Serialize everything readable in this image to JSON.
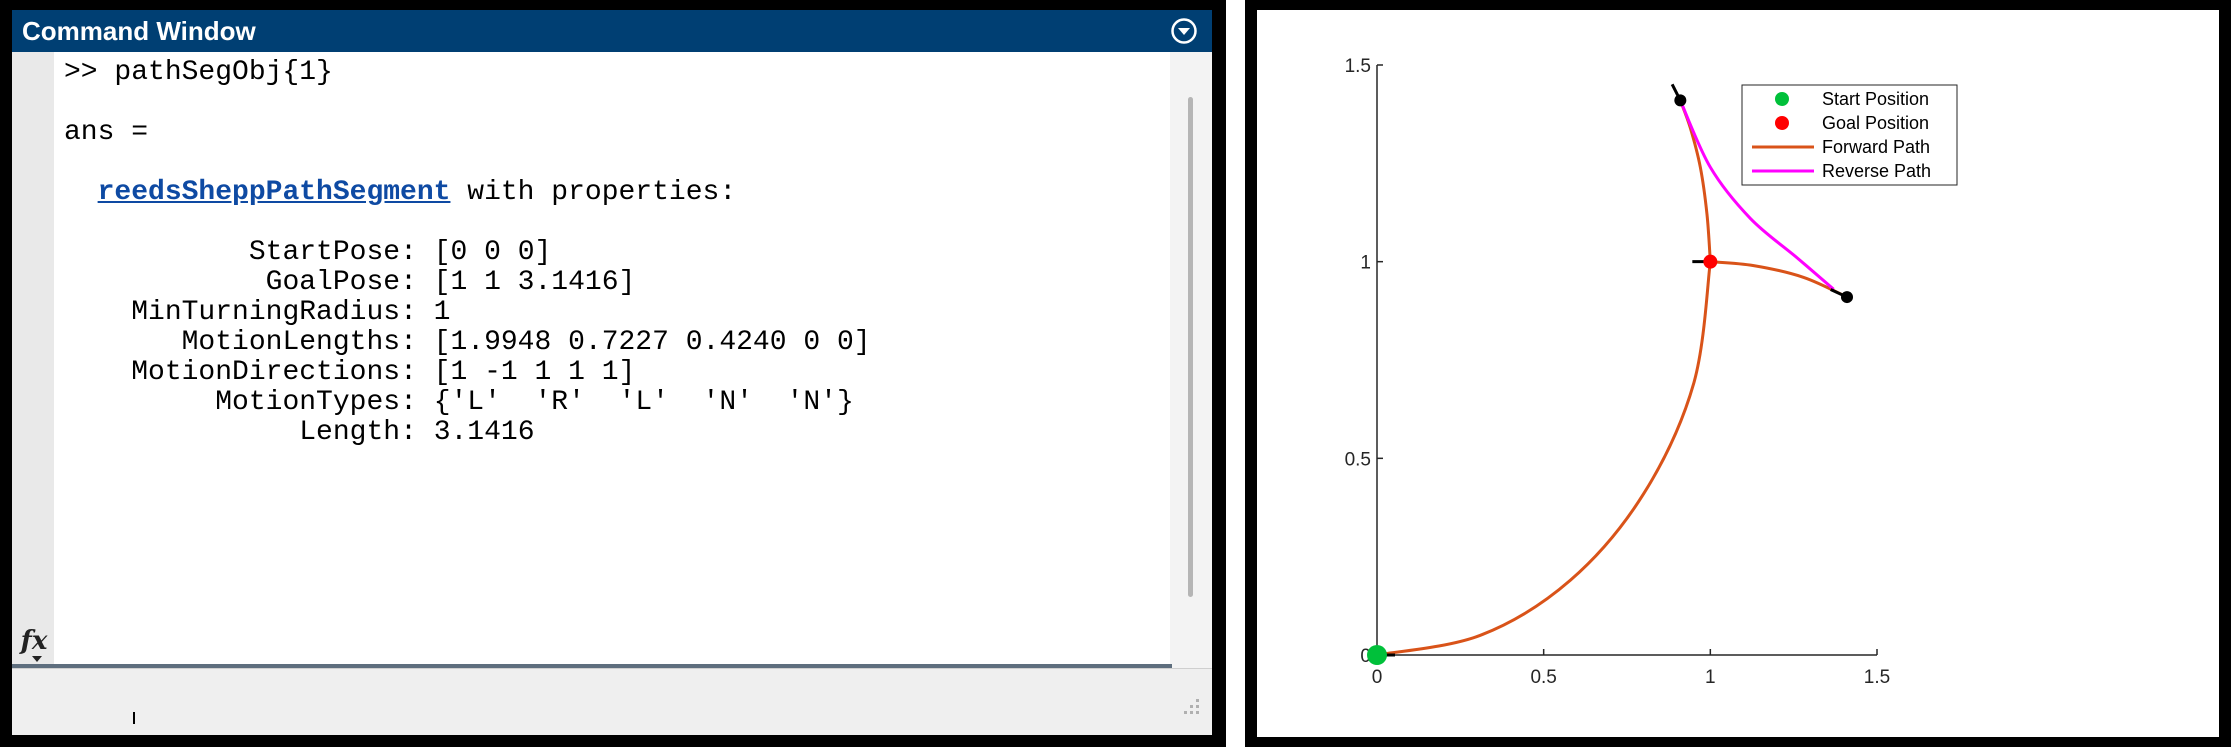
{
  "command_window": {
    "title": "Command Window",
    "lines": [
      ">> pathSegObj{1}",
      "",
      "ans =",
      "",
      "  reedsSheppPathSegment with properties:",
      "",
      "           StartPose: [0 0 0]",
      "            GoalPose: [1 1 3.1416]",
      "    MinTurningRadius: 1",
      "       MotionLengths: [1.9948 0.7227 0.4240 0 0]",
      "    MotionDirections: [1 -1 1 1 1]",
      "         MotionTypes: {'L'  'R'  'L'  'N'  'N'}",
      "              Length: 3.1416"
    ],
    "prompt_line": ">> pathSegObj{1}",
    "ans_line": "ans =",
    "class_link": "reedsSheppPathSegment",
    "class_suffix": " with properties:",
    "props": [
      {
        "name": "StartPose",
        "value": "[0 0 0]"
      },
      {
        "name": "GoalPose",
        "value": "[1 1 3.1416]"
      },
      {
        "name": "MinTurningRadius",
        "value": "1"
      },
      {
        "name": "MotionLengths",
        "value": "[1.9948 0.7227 0.4240 0 0]"
      },
      {
        "name": "MotionDirections",
        "value": "[1 -1 1 1 1]"
      },
      {
        "name": "MotionTypes",
        "value": "{'L'  'R'  'L'  'N'  'N'}"
      },
      {
        "name": "Length",
        "value": "3.1416"
      }
    ],
    "fx_label": "fx",
    "colors": {
      "titlebar": "#003f73",
      "link": "#0e4aa3"
    }
  },
  "chart_data": {
    "type": "line",
    "title": "",
    "xlabel": "",
    "ylabel": "",
    "xlim": [
      0,
      1.5
    ],
    "ylim": [
      0,
      1.5
    ],
    "xticks": [
      0,
      0.5,
      1,
      1.5
    ],
    "yticks": [
      0,
      0.5,
      1,
      1.5
    ],
    "xtick_labels": [
      "0",
      "0.5",
      "1",
      "1.5"
    ],
    "ytick_labels": [
      "0",
      "0.5",
      "1",
      "1.5"
    ],
    "grid": false,
    "legend_position": "top-right",
    "series": [
      {
        "name": "Start Position",
        "type": "scatter",
        "color": "#00c03a",
        "x": [
          0
        ],
        "y": [
          0
        ]
      },
      {
        "name": "Goal Position",
        "type": "scatter",
        "color": "#ff0000",
        "x": [
          1
        ],
        "y": [
          1
        ]
      },
      {
        "name": "Forward Path",
        "type": "line",
        "color": "#d95319",
        "x": [
          0,
          0.31,
          0.58,
          0.8,
          0.95,
          1.0,
          0.99,
          0.97,
          0.94,
          0.91,
          1.0,
          1.13,
          1.28,
          1.41
        ],
        "y": [
          0,
          0.05,
          0.19,
          0.41,
          0.69,
          1.0,
          1.12,
          1.24,
          1.34,
          1.41,
          1.0,
          0.99,
          0.96,
          0.91
        ]
      },
      {
        "name": "Reverse Path",
        "type": "line",
        "color": "#ff00ff",
        "x": [
          0.91,
          1.0,
          1.12,
          1.26,
          1.37
        ],
        "y": [
          1.41,
          1.24,
          1.11,
          1.01,
          0.93
        ]
      }
    ],
    "waypoints": [
      {
        "x": 0.91,
        "y": 1.41,
        "color": "#000000"
      },
      {
        "x": 1.41,
        "y": 0.91,
        "color": "#000000"
      }
    ],
    "heading_markers": [
      {
        "x": 0,
        "y": 0,
        "heading_deg": 0
      },
      {
        "x": 1,
        "y": 1,
        "heading_deg": 180
      },
      {
        "x": 0.91,
        "y": 1.41,
        "heading_deg": 117
      },
      {
        "x": 1.41,
        "y": 0.91,
        "heading_deg": 155
      }
    ]
  }
}
